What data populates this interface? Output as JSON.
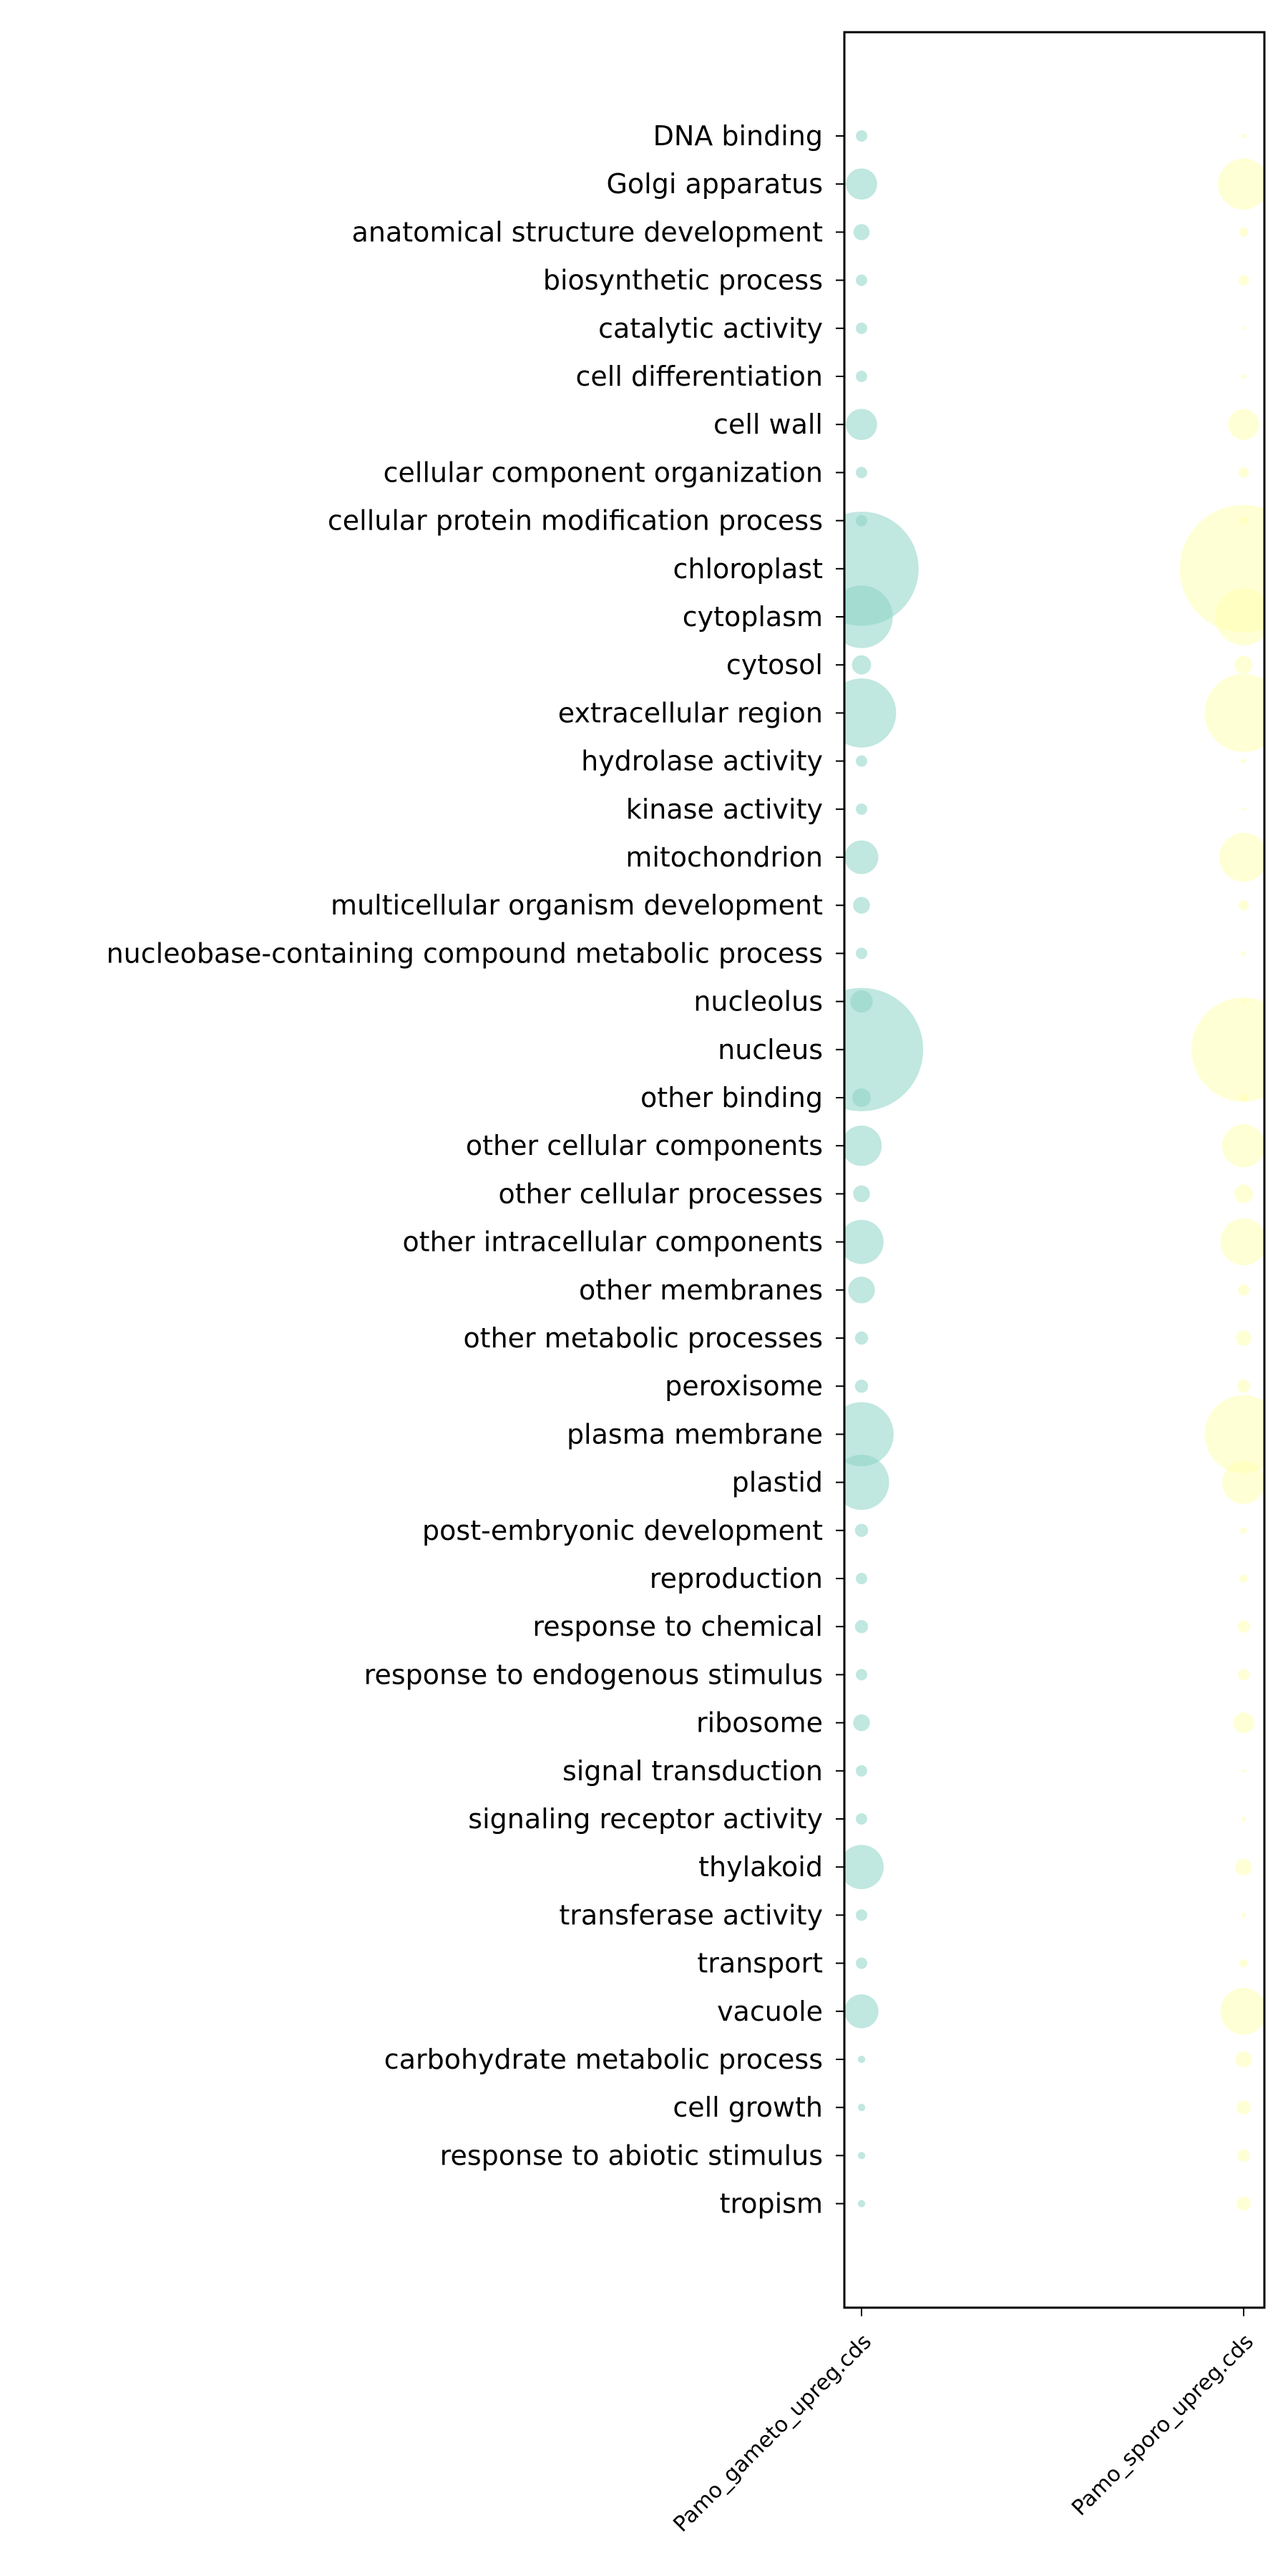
{
  "chart_data": {
    "type": "scatter",
    "title": "",
    "xlabel": "",
    "ylabel": "",
    "grid": false,
    "legend": "none",
    "size_encoding": "bubble area proportional to value",
    "x": [
      "Pamo_gameto_upreg.cds",
      "Pamo_sporo_upreg.cds"
    ],
    "categories": [
      "DNA binding",
      "Golgi apparatus",
      "anatomical structure development",
      "biosynthetic process",
      "catalytic activity",
      "cell differentiation",
      "cell wall",
      "cellular component organization",
      "cellular protein modification process",
      "chloroplast",
      "cytoplasm",
      "cytosol",
      "extracellular region",
      "hydrolase activity",
      "kinase activity",
      "mitochondrion",
      "multicellular organism development",
      "nucleobase-containing compound metabolic process",
      "nucleolus",
      "nucleus",
      "other binding",
      "other cellular components",
      "other cellular processes",
      "other intracellular components",
      "other membranes",
      "other metabolic processes",
      "peroxisome",
      "plasma membrane",
      "plastid",
      "post-embryonic development",
      "reproduction",
      "response to chemical",
      "response to endogenous stimulus",
      "ribosome",
      "signal transduction",
      "signaling receptor activity",
      "thylakoid",
      "transferase activity",
      "transport",
      "vacuole",
      "carbohydrate metabolic process",
      "cell growth",
      "response to abiotic stimulus",
      "tropism"
    ],
    "series": [
      {
        "color": "#8dd3c7",
        "values": [
          0.6,
          4.5,
          1.2,
          0.6,
          0.6,
          0.6,
          4.5,
          0.6,
          0.6,
          60,
          18,
          1.7,
          22,
          0.6,
          0.6,
          5.2,
          1.3,
          0.6,
          2.3,
          70,
          1.6,
          7.5,
          1.3,
          9,
          3.3,
          0.8,
          0.8,
          19,
          14,
          0.8,
          0.6,
          0.8,
          0.6,
          1.3,
          0.6,
          0.6,
          9,
          0.6,
          0.6,
          5.3,
          0.25,
          0.25,
          0.25,
          0.25
        ]
      },
      {
        "color": "#ffffb3",
        "values": [
          0.1,
          12,
          0.4,
          0.5,
          0.05,
          0.1,
          4.4,
          0.5,
          0.3,
          75,
          15,
          1.5,
          28,
          0.1,
          0.05,
          11,
          0.5,
          0.1,
          0.1,
          50,
          0.3,
          8.5,
          1.6,
          10,
          0.6,
          1.1,
          0.8,
          28,
          8.5,
          0.2,
          0.3,
          0.7,
          0.6,
          2,
          0.05,
          0.1,
          1.3,
          0.1,
          0.3,
          10,
          1.2,
          0.9,
          0.7,
          0.9
        ]
      }
    ]
  }
}
